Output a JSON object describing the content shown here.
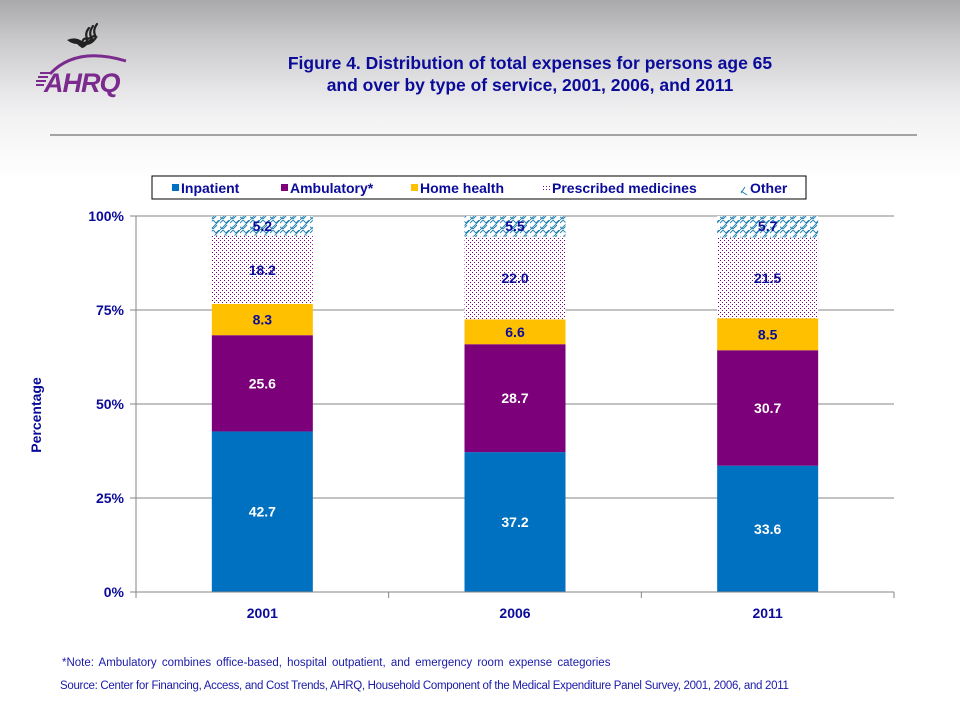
{
  "header": {
    "logo_text": "AHRQ",
    "logo_icon": "hhs-eagle-icon",
    "title_line1": "Figure 4. Distribution of total expenses for persons age 65",
    "title_line2": "and over by type of service, 2001, 2006, and 2011"
  },
  "colors": {
    "title": "#0b0b9a",
    "inpatient": "#0070c0",
    "ambulatory": "#7b0079",
    "home_health": "#ffc000",
    "prescribed_medicines": "#7b0079",
    "other": "#1f7fb0",
    "label_dark": "#0b0b9a",
    "label_light": "#ffffff"
  },
  "chart_data": {
    "type": "bar",
    "stacked": true,
    "title": "Figure 4. Distribution of total expenses for persons age 65 and over by type of service, 2001, 2006, and 2011",
    "xlabel": "",
    "ylabel": "Percentage",
    "ylim": [
      0,
      100
    ],
    "yticks": [
      "0%",
      "25%",
      "50%",
      "75%",
      "100%"
    ],
    "ytick_values": [
      0,
      25,
      50,
      75,
      100
    ],
    "grid": true,
    "legend_position": "top",
    "categories": [
      "2001",
      "2006",
      "2011"
    ],
    "series": [
      {
        "name": "Inpatient",
        "key": "inpatient",
        "pattern": "solid",
        "label_color": "light",
        "values": [
          42.7,
          37.2,
          33.6
        ]
      },
      {
        "name": "Ambulatory*",
        "key": "ambulatory",
        "pattern": "solid",
        "label_color": "light",
        "values": [
          25.6,
          28.7,
          30.7
        ]
      },
      {
        "name": "Home health",
        "key": "home_health",
        "pattern": "solid",
        "label_color": "dark",
        "values": [
          8.3,
          6.6,
          8.5
        ]
      },
      {
        "name": "Prescribed medicines",
        "key": "prescribed_medicines",
        "pattern": "dots",
        "label_color": "dark",
        "values": [
          18.2,
          22.0,
          21.5
        ]
      },
      {
        "name": "Other",
        "key": "other",
        "pattern": "hatch",
        "label_color": "dark",
        "values": [
          5.2,
          5.5,
          5.7
        ]
      }
    ]
  },
  "footer": {
    "note": "*Note: Ambulatory combines office-based, hospital outpatient, and emergency room expense categories",
    "source": "Source: Center for Financing, Access, and Cost Trends, AHRQ, Household Component of the Medical Expenditure Panel Survey, 2001, 2006, and 2011"
  }
}
